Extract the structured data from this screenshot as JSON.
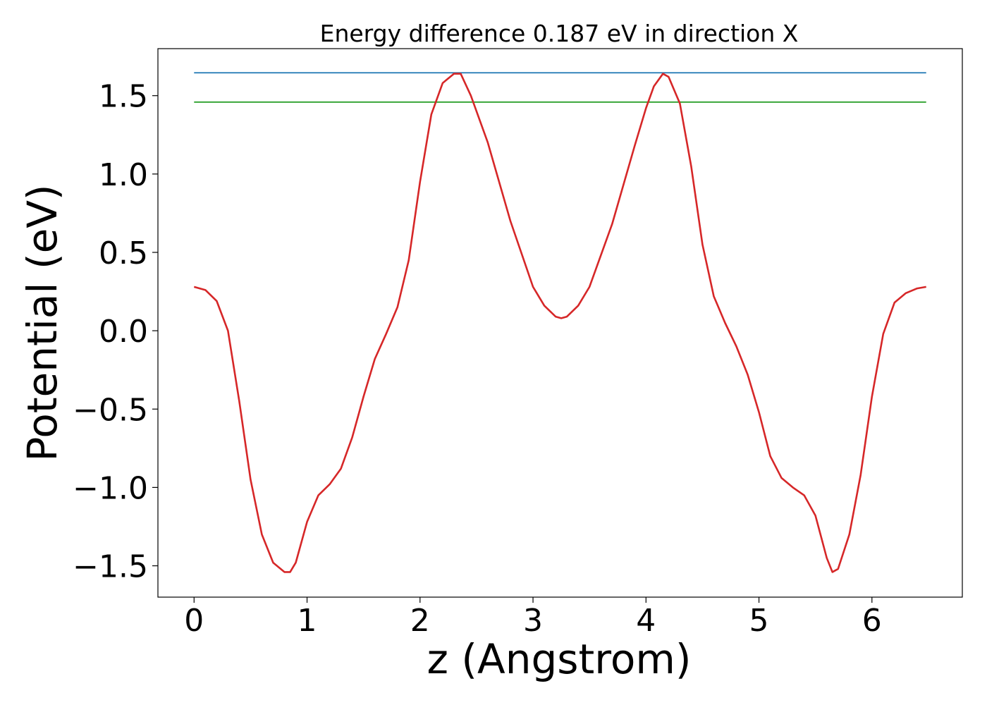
{
  "chart_data": {
    "type": "line",
    "title": "Energy difference 0.187 eV in direction X",
    "xlabel": "z (Angstrom)",
    "ylabel": "Potential (eV)",
    "xlim": [
      -0.32,
      6.8
    ],
    "ylim": [
      -1.7,
      1.8
    ],
    "xticks": [
      0,
      1,
      2,
      3,
      4,
      5,
      6
    ],
    "yticks": [
      -1.5,
      -1.0,
      -0.5,
      0.0,
      0.5,
      1.0,
      1.5
    ],
    "ytick_labels": [
      "−1.5",
      "−1.0",
      "−0.5",
      "0.0",
      "0.5",
      "1.0",
      "1.5"
    ],
    "grid": false,
    "series": [
      {
        "color": "#d62728",
        "x": [
          0.0,
          0.1,
          0.2,
          0.3,
          0.4,
          0.5,
          0.6,
          0.7,
          0.8,
          0.85,
          0.9,
          1.0,
          1.1,
          1.2,
          1.3,
          1.4,
          1.5,
          1.6,
          1.7,
          1.8,
          1.9,
          2.0,
          2.1,
          2.2,
          2.3,
          2.36,
          2.45,
          2.6,
          2.8,
          3.0,
          3.1,
          3.2,
          3.25,
          3.3,
          3.4,
          3.5,
          3.7,
          3.9,
          4.0,
          4.07,
          4.15,
          4.2,
          4.3,
          4.4,
          4.5,
          4.6,
          4.7,
          4.8,
          4.9,
          5.0,
          5.1,
          5.2,
          5.3,
          5.4,
          5.5,
          5.6,
          5.65,
          5.7,
          5.8,
          5.9,
          6.0,
          6.1,
          6.2,
          6.3,
          6.4,
          6.48
        ],
        "y": [
          0.28,
          0.26,
          0.19,
          0.0,
          -0.45,
          -0.95,
          -1.3,
          -1.48,
          -1.54,
          -1.54,
          -1.48,
          -1.22,
          -1.05,
          -0.98,
          -0.88,
          -0.68,
          -0.42,
          -0.18,
          -0.02,
          0.15,
          0.45,
          0.95,
          1.38,
          1.58,
          1.64,
          1.64,
          1.5,
          1.2,
          0.7,
          0.28,
          0.16,
          0.09,
          0.08,
          0.09,
          0.16,
          0.28,
          0.68,
          1.18,
          1.42,
          1.56,
          1.64,
          1.62,
          1.45,
          1.05,
          0.55,
          0.22,
          0.05,
          -0.1,
          -0.28,
          -0.52,
          -0.8,
          -0.94,
          -1.0,
          -1.05,
          -1.18,
          -1.45,
          -1.54,
          -1.52,
          -1.3,
          -0.92,
          -0.42,
          -0.02,
          0.18,
          0.24,
          0.27,
          0.28
        ]
      },
      {
        "color": "#1f77b4",
        "x": [
          0.0,
          6.48
        ],
        "y": [
          1.646,
          1.646
        ]
      },
      {
        "color": "#2ca02c",
        "x": [
          0.0,
          6.48
        ],
        "y": [
          1.459,
          1.459
        ]
      }
    ]
  }
}
